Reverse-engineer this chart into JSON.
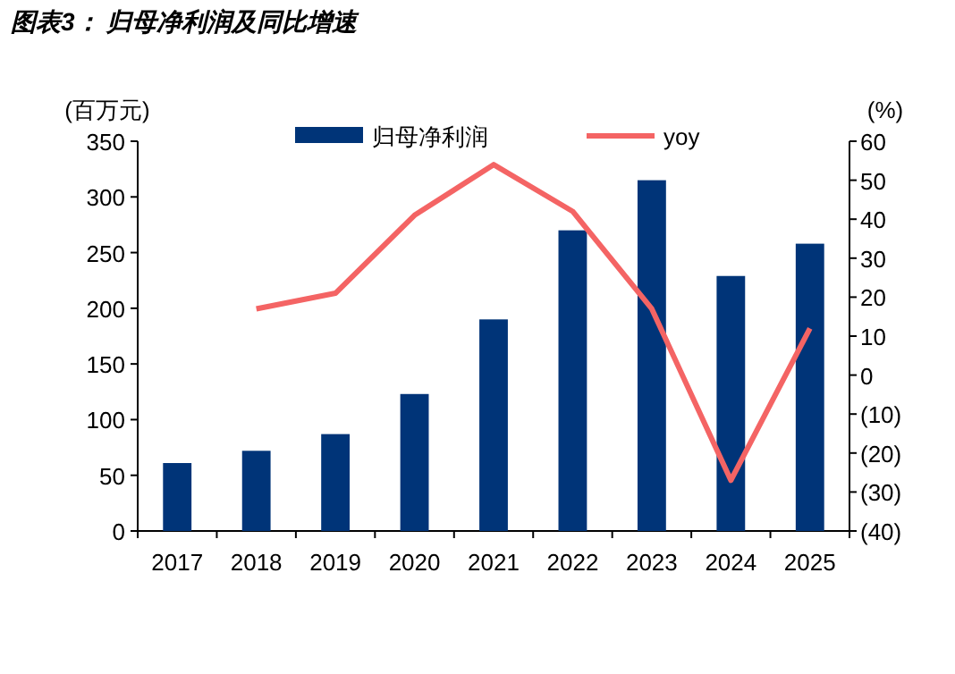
{
  "chart_data": {
    "type": "bar",
    "title": "图表3：  归母净利润及同比增速",
    "ylabel": "(百万元)",
    "y2label": "(%)",
    "categories": [
      "2017",
      "2018",
      "2019",
      "2020",
      "2021",
      "2022",
      "2023",
      "2024",
      "2025"
    ],
    "series": [
      {
        "name": "归母净利润",
        "color": "#003478",
        "values": [
          61,
          72,
          87,
          123,
          190,
          270,
          315,
          229,
          258
        ]
      },
      {
        "name": "yoy",
        "type": "line",
        "axis": "y2",
        "color": "#f46464",
        "values": [
          null,
          17,
          21,
          41,
          54,
          42,
          17,
          -27,
          12
        ]
      }
    ],
    "ylim": [
      0,
      350
    ],
    "yticks": [
      0,
      50,
      100,
      150,
      200,
      250,
      300,
      350
    ],
    "y2lim": [
      -40,
      60
    ],
    "y2ticks": [
      {
        "value": -40,
        "label": "(40)"
      },
      {
        "value": -30,
        "label": "(30)"
      },
      {
        "value": -20,
        "label": "(20)"
      },
      {
        "value": -10,
        "label": "(10)"
      },
      0,
      10,
      20,
      30,
      40,
      50,
      60
    ],
    "legend": "top",
    "grid": false,
    "marker": "none",
    "line_style": "solid"
  }
}
